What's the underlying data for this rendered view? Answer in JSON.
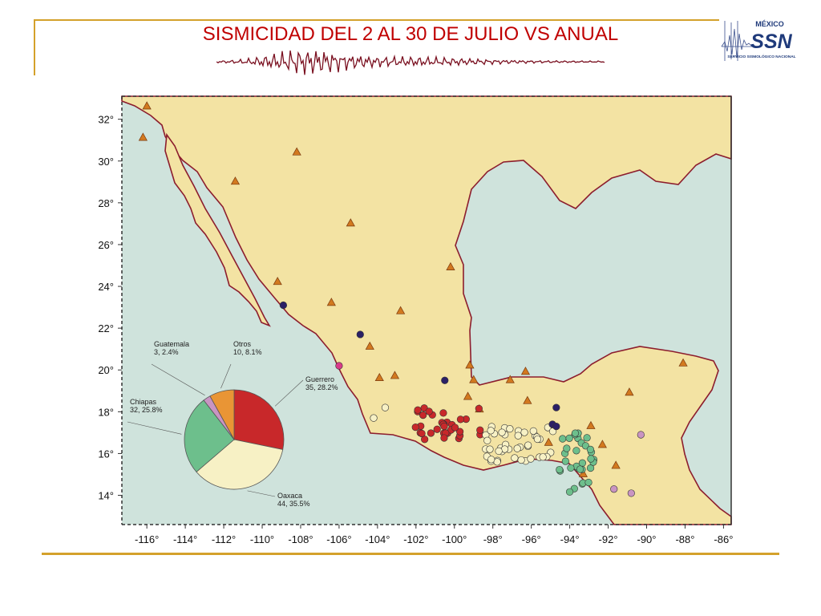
{
  "title": "SISMICIDAD DEL 2 AL 30 DE JULIO VS ANUAL",
  "logo": {
    "top_text": "MÉXICO",
    "main_text": "SSN",
    "sub_text": "SERVICIO SISMOLÓGICO NACIONAL"
  },
  "colors": {
    "accent_gold": "#d4a12b",
    "title_red": "#c00000",
    "land": "#f3e3a3",
    "ocean": "#cfe3dc",
    "coast": "#8c1d2d",
    "volcano": "#d2791f",
    "guerrero": "#c8282a",
    "oaxaca": "#f7f1c5",
    "chiapas": "#6dbf8c",
    "guatemala": "#c994c2",
    "otros": "#e99535",
    "otros_dark": "#2b2066",
    "otros_pink": "#d93a8a"
  },
  "map": {
    "lon_ticks": [
      "-116°",
      "-114°",
      "-112°",
      "-110°",
      "-108°",
      "-106°",
      "-104°",
      "-102°",
      "-100°",
      "-98°",
      "-96°",
      "-94°",
      "-92°",
      "-90°",
      "-88°",
      "-86°"
    ],
    "lat_ticks": [
      "14°",
      "16°",
      "18°",
      "20°",
      "22°",
      "24°",
      "26°",
      "28°",
      "30°",
      "32°"
    ],
    "icons": [
      "volcano-icon",
      "epicenter-icon"
    ]
  },
  "chart_data": {
    "type": "pie",
    "slices": [
      {
        "name": "Guerrero",
        "count": 35,
        "percent": 28.2,
        "label": "Guerrero",
        "value_label": "35, 28.2%"
      },
      {
        "name": "Oaxaca",
        "count": 44,
        "percent": 35.5,
        "label": "Oaxaca",
        "value_label": "44, 35.5%"
      },
      {
        "name": "Chiapas",
        "count": 32,
        "percent": 25.8,
        "label": "Chiapas",
        "value_label": "32, 25.8%"
      },
      {
        "name": "Guatemala",
        "count": 3,
        "percent": 2.4,
        "label": "Guatemala",
        "value_label": "3, 2.4%"
      },
      {
        "name": "Otros",
        "count": 10,
        "percent": 8.1,
        "label": "Otros",
        "value_label": "10, 8.1%"
      }
    ]
  }
}
